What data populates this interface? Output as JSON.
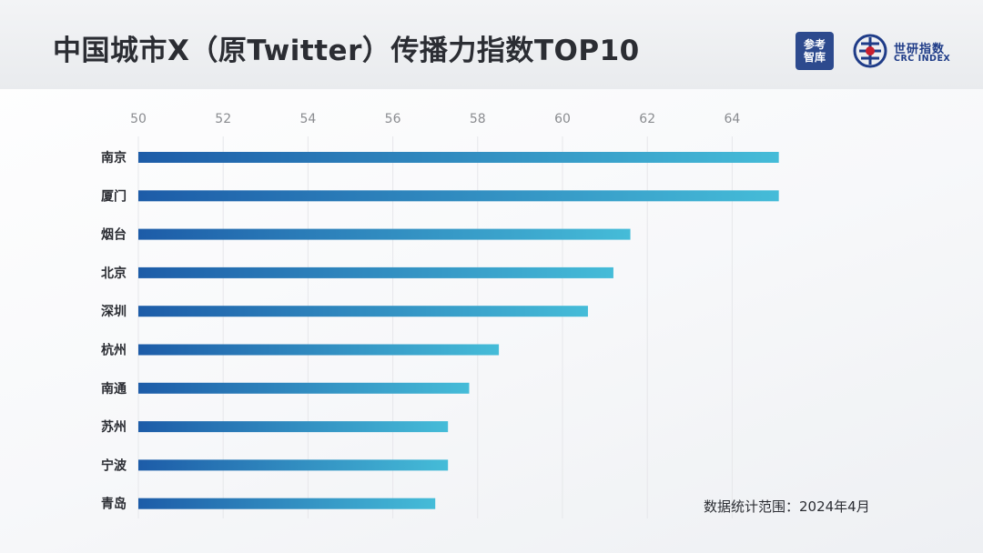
{
  "header": {
    "title": "中国城市X（原Twitter）传播力指数TOP10",
    "logo_cankao_line1": "参考",
    "logo_cankao_line2": "智库",
    "logo_crc_cn": "世研指数",
    "logo_crc_en": "CRC INDEX"
  },
  "footnote": "数据统计范围：2024年4月",
  "colors": {
    "bar_start": "#1d5ca8",
    "bar_end": "#45bcd8",
    "tick_label": "#8a8c90",
    "category_label": "#2b2d33",
    "gridline": "#e6e7ea"
  },
  "chart_data": {
    "type": "bar",
    "orientation": "horizontal",
    "categories": [
      "南京",
      "厦门",
      "烟台",
      "北京",
      "深圳",
      "杭州",
      "南通",
      "苏州",
      "宁波",
      "青岛"
    ],
    "values": [
      65.1,
      65.1,
      61.6,
      61.2,
      60.6,
      58.5,
      57.8,
      57.3,
      57.3,
      57.0
    ],
    "xlim": [
      50,
      66
    ],
    "xticks": [
      50,
      52,
      54,
      56,
      58,
      60,
      62,
      64
    ],
    "x_axis_position": "top",
    "grid": true,
    "legend": "none",
    "title": "中国城市X（原Twitter）传播力指数TOP10"
  }
}
